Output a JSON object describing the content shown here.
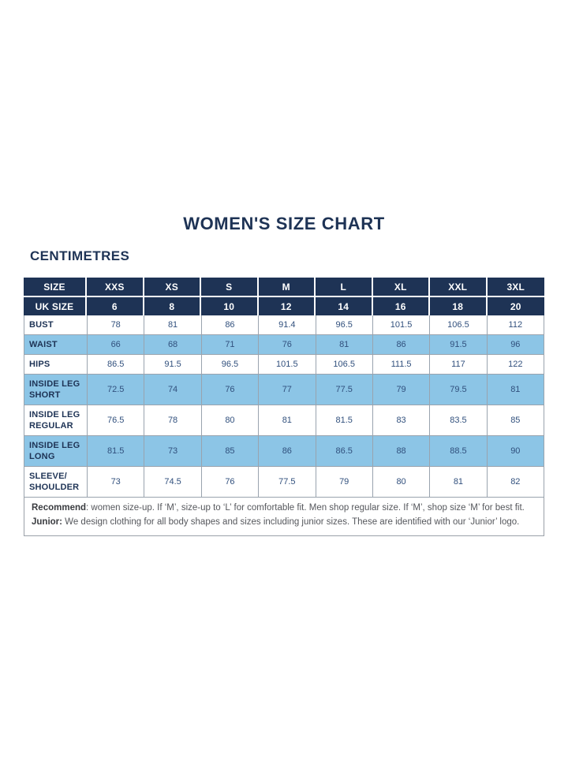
{
  "page": {
    "title": "WOMEN'S SIZE CHART",
    "units_label": "CENTIMETRES"
  },
  "colors": {
    "navy_header": "#1e3355",
    "light_blue_row": "#8cc5e6",
    "white_row": "#ffffff",
    "value_text": "#31507d",
    "grid_line": "#99a3ae",
    "footer_text": "#55575c"
  },
  "table": {
    "header_rows": [
      {
        "label": "SIZE",
        "values": [
          "XXS",
          "XS",
          "S",
          "M",
          "L",
          "XL",
          "XXL",
          "3XL"
        ]
      },
      {
        "label": "UK SIZE",
        "values": [
          "6",
          "8",
          "10",
          "12",
          "14",
          "16",
          "18",
          "20"
        ]
      }
    ],
    "rows": [
      {
        "label": "BUST",
        "shade": "white",
        "values": [
          "78",
          "81",
          "86",
          "91.4",
          "96.5",
          "101.5",
          "106.5",
          "112"
        ]
      },
      {
        "label": "WAIST",
        "shade": "blue",
        "values": [
          "66",
          "68",
          "71",
          "76",
          "81",
          "86",
          "91.5",
          "96"
        ]
      },
      {
        "label": "HIPS",
        "shade": "white",
        "values": [
          "86.5",
          "91.5",
          "96.5",
          "101.5",
          "106.5",
          "111.5",
          "117",
          "122"
        ]
      },
      {
        "label": "INSIDE LEG SHORT",
        "shade": "blue",
        "values": [
          "72.5",
          "74",
          "76",
          "77",
          "77.5",
          "79",
          "79.5",
          "81"
        ]
      },
      {
        "label": "INSIDE LEG REGULAR",
        "shade": "white",
        "values": [
          "76.5",
          "78",
          "80",
          "81",
          "81.5",
          "83",
          "83.5",
          "85"
        ]
      },
      {
        "label": "INSIDE LEG LONG",
        "shade": "blue",
        "values": [
          "81.5",
          "73",
          "85",
          "86",
          "86.5",
          "88",
          "88.5",
          "90"
        ]
      },
      {
        "label": "SLEEVE/SHOULDER",
        "shade": "white",
        "values": [
          "73",
          "74.5",
          "76",
          "77.5",
          "79",
          "80",
          "81",
          "82"
        ]
      }
    ],
    "footer": {
      "recommend_label": "Recommend",
      "recommend_text": ": women size-up. If ‘M’, size-up to ‘L’ for comfortable fit. Men shop regular size. If ‘M’, shop size ‘M’ for best fit.",
      "junior_label": "Junior:",
      "junior_text": " We design clothing for all body shapes and sizes including junior sizes. These are identified with our ‘Junior’ logo."
    }
  },
  "chart_data": {
    "type": "table",
    "title": "WOMEN'S SIZE CHART",
    "units": "CENTIMETRES",
    "columns": [
      "SIZE",
      "XXS",
      "XS",
      "S",
      "M",
      "L",
      "XL",
      "XXL",
      "3XL"
    ],
    "rows": [
      [
        "UK SIZE",
        6,
        8,
        10,
        12,
        14,
        16,
        18,
        20
      ],
      [
        "BUST",
        78,
        81,
        86,
        91.4,
        96.5,
        101.5,
        106.5,
        112
      ],
      [
        "WAIST",
        66,
        68,
        71,
        76,
        81,
        86,
        91.5,
        96
      ],
      [
        "HIPS",
        86.5,
        91.5,
        96.5,
        101.5,
        106.5,
        111.5,
        117,
        122
      ],
      [
        "INSIDE LEG SHORT",
        72.5,
        74,
        76,
        77,
        77.5,
        79,
        79.5,
        81
      ],
      [
        "INSIDE LEG REGULAR",
        76.5,
        78,
        80,
        81,
        81.5,
        83,
        83.5,
        85
      ],
      [
        "INSIDE LEG LONG",
        81.5,
        73,
        85,
        86,
        86.5,
        88,
        88.5,
        90
      ],
      [
        "SLEEVE/SHOULDER",
        73,
        74.5,
        76,
        77.5,
        79,
        80,
        81,
        82
      ]
    ],
    "notes": [
      "Recommend: women size-up. If ‘M’, size-up to ‘L’ for comfortable fit. Men shop regular size. If ‘M’, shop size ‘M’ for best fit.",
      "Junior: We design clothing for all body shapes and sizes including junior sizes. These are identified with our ‘Junior’ logo."
    ]
  }
}
